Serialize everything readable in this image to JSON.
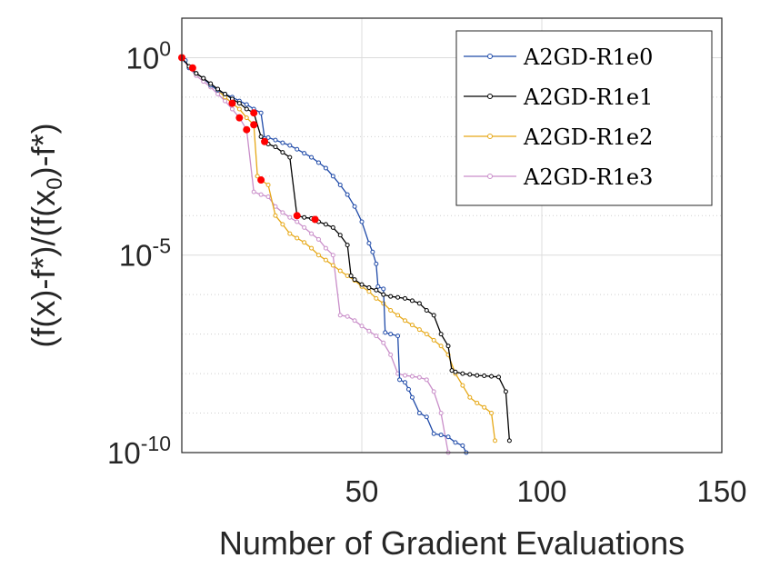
{
  "chart_data": {
    "type": "line",
    "title": "",
    "xlabel": "Number of Gradient Evaluations",
    "ylabel": "(f(x)-f*)/(f(x_0)-f*)",
    "xlim": [
      0,
      150
    ],
    "ylim": [
      1e-10,
      10
    ],
    "yscale": "log",
    "grid": true,
    "legend_location": "top-right",
    "x_ticks": [
      {
        "value": 50,
        "label": "50"
      },
      {
        "value": 100,
        "label": "100"
      },
      {
        "value": 150,
        "label": "150"
      }
    ],
    "y_ticks": [
      {
        "value": 1,
        "label_base": "10",
        "label_exp": "0"
      },
      {
        "value": 1e-05,
        "label_base": "10",
        "label_exp": "-5"
      },
      {
        "value": 1e-10,
        "label_base": "10",
        "label_exp": "-10"
      }
    ],
    "series": [
      {
        "name": "A2GD-R1e0",
        "color": "#1f4aa8",
        "x": [
          0,
          1,
          2,
          4,
          6,
          8,
          10,
          12,
          14,
          16,
          18,
          20,
          22,
          23,
          24,
          26,
          28,
          30,
          32,
          34,
          36,
          38,
          40,
          42,
          44,
          46,
          48,
          50,
          52,
          53,
          54,
          54.5,
          56,
          56.5,
          58,
          60,
          60.5,
          62,
          63,
          64,
          66,
          68,
          70,
          72,
          74,
          76,
          78,
          79
        ],
        "y": [
          1,
          0.85,
          0.55,
          0.4,
          0.3,
          0.2,
          0.15,
          0.12,
          0.1,
          0.08,
          0.065,
          0.05,
          0.04,
          0.009,
          0.0095,
          0.0082,
          0.007,
          0.006,
          0.0048,
          0.0038,
          0.003,
          0.0022,
          0.0016,
          0.001,
          0.0006,
          0.00034,
          0.00017,
          7e-05,
          2e-05,
          1.2e-05,
          6e-06,
          1.6e-06,
          1.4e-06,
          1.1e-07,
          1e-07,
          9e-08,
          7e-09,
          6e-09,
          4e-09,
          2.5e-09,
          1e-09,
          8e-10,
          3e-10,
          2.8e-10,
          2.5e-10,
          1.8e-10,
          1.5e-10,
          1e-10
        ],
        "markers": [
          [
            0,
            1
          ],
          [
            3,
            0.55
          ]
        ]
      },
      {
        "name": "A2GD-R1e1",
        "color": "#000000",
        "x": [
          0,
          2,
          4,
          6,
          8,
          10,
          12,
          14,
          16,
          18,
          20,
          22,
          23,
          24,
          26,
          28,
          30,
          32,
          34,
          36,
          37,
          38,
          40,
          42,
          44,
          46,
          47,
          48,
          50,
          52,
          54,
          56,
          58,
          60,
          62,
          64,
          66,
          68,
          70,
          72,
          74,
          75,
          76,
          78,
          80,
          82,
          84,
          86,
          88,
          90,
          91
        ],
        "y": [
          1,
          0.6,
          0.4,
          0.3,
          0.22,
          0.16,
          0.12,
          0.09,
          0.07,
          0.05,
          0.04,
          0.01,
          0.0075,
          0.0065,
          0.0055,
          0.004,
          0.003,
          0.0001,
          9e-05,
          8.5e-05,
          8e-05,
          7e-05,
          6e-05,
          5e-05,
          3.2e-05,
          1.8e-05,
          3e-06,
          2.4e-06,
          1.8e-06,
          1.5e-06,
          1.3e-06,
          1e-06,
          9e-07,
          8.5e-07,
          8e-07,
          7e-07,
          6e-07,
          4e-07,
          3e-07,
          1e-07,
          5e-08,
          1.2e-08,
          1.1e-08,
          1e-08,
          9.5e-09,
          9e-09,
          8.8e-09,
          8.5e-09,
          8.2e-09,
          3.5e-09,
          2e-10
        ],
        "markers": [
          [
            20,
            0.04
          ],
          [
            23,
            0.0075
          ],
          [
            32,
            0.0001
          ],
          [
            37,
            8e-05
          ]
        ]
      },
      {
        "name": "A2GD-R1e2",
        "color": "#e6a817",
        "x": [
          0,
          2,
          4,
          6,
          8,
          10,
          12,
          14,
          16,
          18,
          20,
          21,
          22,
          24,
          26,
          28,
          30,
          32,
          34,
          36,
          38,
          40,
          42,
          44,
          46,
          48,
          50,
          52,
          54,
          56,
          58,
          60,
          62,
          64,
          66,
          68,
          70,
          72,
          74,
          76,
          78,
          80,
          82,
          84,
          86,
          87
        ],
        "y": [
          1,
          0.6,
          0.4,
          0.3,
          0.2,
          0.15,
          0.1,
          0.07,
          0.05,
          0.03,
          0.02,
          0.001,
          0.0008,
          0.0006,
          0.0001,
          6e-05,
          3.5e-05,
          2.7e-05,
          2.1e-05,
          1.5e-05,
          1e-05,
          7.5e-06,
          5.5e-06,
          4e-06,
          3e-06,
          2.3e-06,
          1.6e-06,
          1.2e-06,
          8e-07,
          6e-07,
          4e-07,
          3e-07,
          2.2e-07,
          1.7e-07,
          1.3e-07,
          1e-07,
          7e-08,
          5e-08,
          3e-08,
          1e-08,
          5e-09,
          2.5e-09,
          1.8e-09,
          1.4e-09,
          1e-09,
          2e-10
        ],
        "markers": [
          [
            14,
            0.07
          ],
          [
            20,
            0.02
          ],
          [
            22,
            0.0008
          ]
        ]
      },
      {
        "name": "A2GD-R1e3",
        "color": "#c98ec9",
        "x": [
          0,
          2,
          4,
          6,
          8,
          10,
          12,
          14,
          16,
          18,
          20,
          22,
          24,
          26,
          28,
          30,
          32,
          34,
          36,
          38,
          40,
          42,
          44,
          46,
          48,
          50,
          52,
          54,
          56,
          58,
          60,
          62,
          64,
          66,
          68,
          70,
          72,
          74
        ],
        "y": [
          1,
          0.55,
          0.35,
          0.25,
          0.18,
          0.12,
          0.08,
          0.05,
          0.03,
          0.015,
          0.0004,
          0.00034,
          0.0003,
          0.00017,
          0.00012,
          9e-05,
          7e-05,
          5e-05,
          3.5e-05,
          2.5e-05,
          1.5e-05,
          1e-05,
          3e-07,
          2.8e-07,
          2.2e-07,
          1.6e-07,
          1.2e-07,
          9e-08,
          6e-08,
          3e-08,
          1e-08,
          9e-09,
          8.5e-09,
          8e-09,
          7e-09,
          3.5e-09,
          1e-09,
          1e-10
        ],
        "markers": [
          [
            16,
            0.03
          ],
          [
            18,
            0.015
          ]
        ]
      }
    ],
    "marker_color": "#ff0000"
  }
}
